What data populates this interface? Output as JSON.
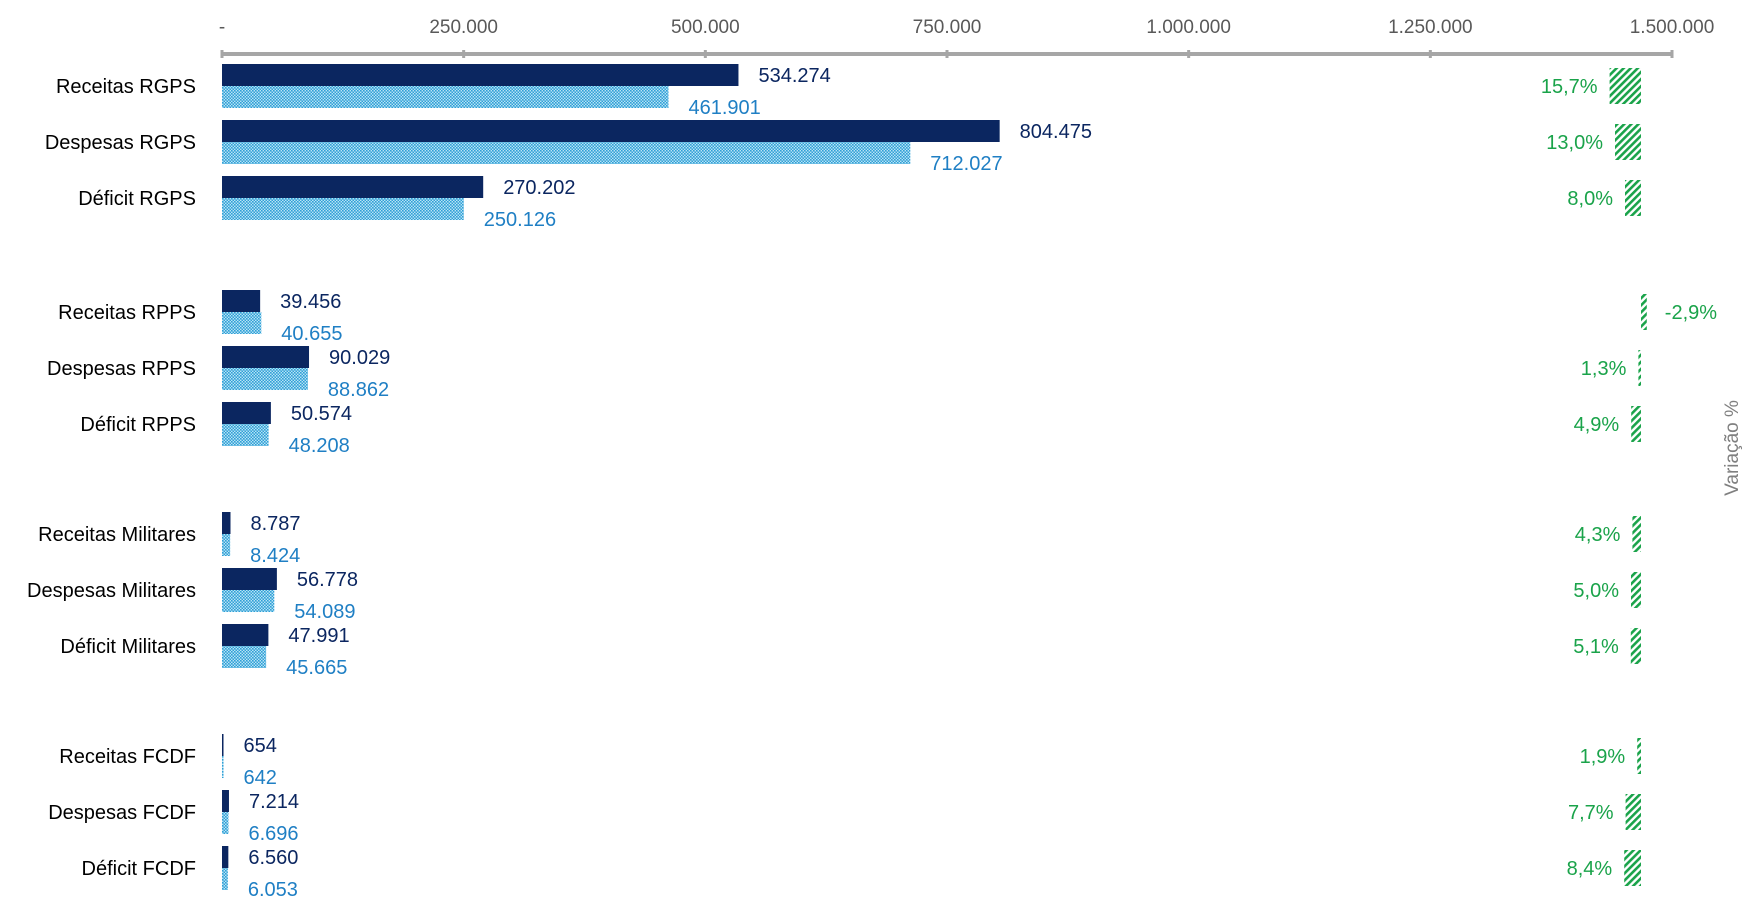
{
  "chart_data": {
    "type": "bar",
    "orientation": "horizontal",
    "x_axis": {
      "min": 0,
      "max": 1500000,
      "position": "top",
      "tick_values": [
        0,
        250000,
        500000,
        750000,
        1000000,
        1250000,
        1500000
      ],
      "tick_labels": [
        "-",
        "250.000",
        "500.000",
        "750.000",
        "1.000.000",
        "1.250.000",
        "1.500.000"
      ]
    },
    "secondary_axis_label": "Variação %",
    "grid": false,
    "legend": "none",
    "colors": {
      "series_1": "#0b2660",
      "series_2": "#45b1e0",
      "series_2_label": "#1f7fc4",
      "variation": "#1aa34a",
      "axis": "#a6a6a6"
    },
    "groups": [
      {
        "name": "RGPS",
        "rows": [
          {
            "category": "Receitas RGPS",
            "value_1": 534274,
            "value_1_label": "534.274",
            "value_2": 461901,
            "value_2_label": "461.901",
            "variation": 15.7,
            "variation_label": "15,7%"
          },
          {
            "category": "Despesas RGPS",
            "value_1": 804475,
            "value_1_label": "804.475",
            "value_2": 712027,
            "value_2_label": "712.027",
            "variation": 13.0,
            "variation_label": "13,0%"
          },
          {
            "category": "Déficit RGPS",
            "value_1": 270202,
            "value_1_label": "270.202",
            "value_2": 250126,
            "value_2_label": "250.126",
            "variation": 8.0,
            "variation_label": "8,0%"
          }
        ]
      },
      {
        "name": "RPPS",
        "rows": [
          {
            "category": "Receitas RPPS",
            "value_1": 39456,
            "value_1_label": "39.456",
            "value_2": 40655,
            "value_2_label": "40.655",
            "variation": -2.9,
            "variation_label": "-2,9%"
          },
          {
            "category": "Despesas RPPS",
            "value_1": 90029,
            "value_1_label": "90.029",
            "value_2": 88862,
            "value_2_label": "88.862",
            "variation": 1.3,
            "variation_label": "1,3%"
          },
          {
            "category": "Déficit RPPS",
            "value_1": 50574,
            "value_1_label": "50.574",
            "value_2": 48208,
            "value_2_label": "48.208",
            "variation": 4.9,
            "variation_label": "4,9%"
          }
        ]
      },
      {
        "name": "Militares",
        "rows": [
          {
            "category": "Receitas Militares",
            "value_1": 8787,
            "value_1_label": "8.787",
            "value_2": 8424,
            "value_2_label": "8.424",
            "variation": 4.3,
            "variation_label": "4,3%"
          },
          {
            "category": "Despesas Militares",
            "value_1": 56778,
            "value_1_label": "56.778",
            "value_2": 54089,
            "value_2_label": "54.089",
            "variation": 5.0,
            "variation_label": "5,0%"
          },
          {
            "category": "Déficit Militares",
            "value_1": 47991,
            "value_1_label": "47.991",
            "value_2": 45665,
            "value_2_label": "45.665",
            "variation": 5.1,
            "variation_label": "5,1%"
          }
        ]
      },
      {
        "name": "FCDF",
        "rows": [
          {
            "category": "Receitas FCDF",
            "value_1": 654,
            "value_1_label": "654",
            "value_2": 642,
            "value_2_label": "642",
            "variation": 1.9,
            "variation_label": "1,9%"
          },
          {
            "category": "Despesas FCDF",
            "value_1": 7214,
            "value_1_label": "7.214",
            "value_2": 6696,
            "value_2_label": "6.696",
            "variation": 7.7,
            "variation_label": "7,7%"
          },
          {
            "category": "Déficit FCDF",
            "value_1": 6560,
            "value_1_label": "6.560",
            "value_2": 6053,
            "value_2_label": "6.053",
            "variation": 8.4,
            "variation_label": "8,4%"
          }
        ]
      }
    ]
  }
}
